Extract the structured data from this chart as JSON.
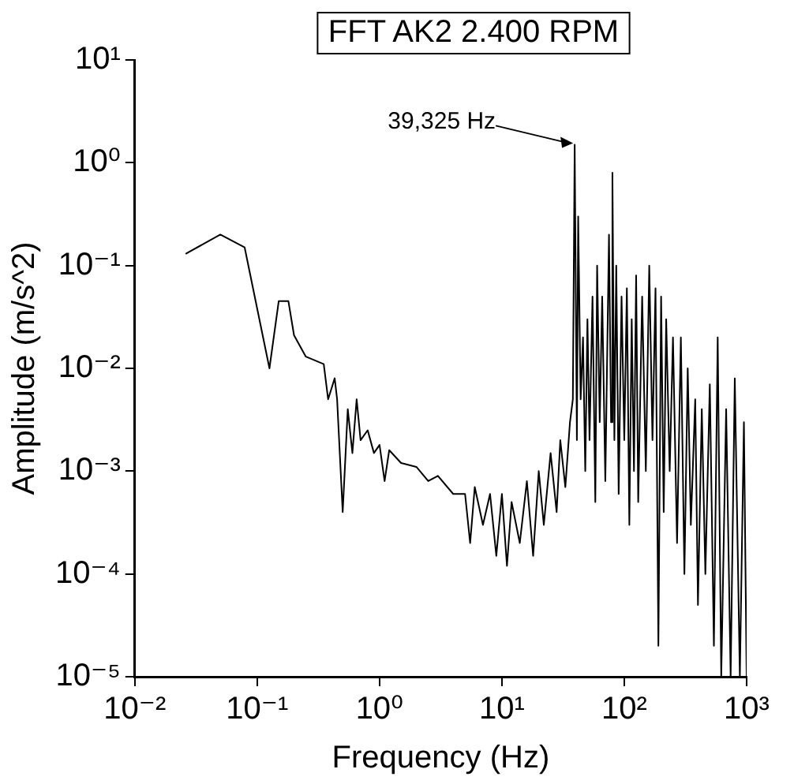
{
  "chart_data": {
    "type": "line",
    "title": "FFT AK2 2.400 RPM",
    "xlabel": "Frequency (Hz)",
    "ylabel": "Amplitude (m/s^2)",
    "log": "xy",
    "grid": false,
    "legend": false,
    "marker": "none",
    "line_style": "solid",
    "xlim": [
      0.01,
      1000
    ],
    "ylim": [
      1e-05,
      10
    ],
    "xticks": [
      {
        "value": 0.01,
        "label": "10⁻²"
      },
      {
        "value": 0.1,
        "label": "10⁻¹"
      },
      {
        "value": 1,
        "label": "10⁰"
      },
      {
        "value": 10,
        "label": "10¹"
      },
      {
        "value": 100,
        "label": "10²"
      },
      {
        "value": 1000,
        "label": "10³"
      }
    ],
    "yticks": [
      {
        "value": 1e-05,
        "label": "10⁻⁵"
      },
      {
        "value": 0.0001,
        "label": "10⁻⁴"
      },
      {
        "value": 0.001,
        "label": "10⁻³"
      },
      {
        "value": 0.01,
        "label": "10⁻²"
      },
      {
        "value": 0.1,
        "label": "10⁻¹"
      },
      {
        "value": 1,
        "label": "10⁰"
      },
      {
        "value": 10,
        "label": "10¹"
      }
    ],
    "annotations": [
      {
        "text": "39,325 Hz",
        "x": 39.325,
        "y": 1.5
      }
    ],
    "series": [
      {
        "color": "#000000",
        "x": [
          0.026,
          0.05,
          0.079,
          0.126,
          0.15,
          0.18,
          0.2,
          0.25,
          0.35,
          0.38,
          0.43,
          0.45,
          0.5,
          0.55,
          0.6,
          0.65,
          0.7,
          0.8,
          0.9,
          1,
          1.1,
          1.2,
          1.5,
          2,
          2.5,
          3,
          4,
          5,
          5.5,
          6,
          7,
          8,
          9,
          10,
          11,
          12,
          14,
          16,
          18,
          20,
          22,
          25,
          28,
          30,
          33,
          36,
          38,
          39.325,
          41,
          42,
          44,
          46,
          48,
          50,
          52,
          55,
          58,
          60,
          63,
          66,
          70,
          75,
          78,
          80,
          83,
          86,
          90,
          95,
          100,
          105,
          110,
          115,
          120,
          125,
          130,
          140,
          150,
          160,
          170,
          180,
          190,
          200,
          210,
          220,
          235,
          250,
          270,
          290,
          310,
          330,
          350,
          380,
          400,
          430,
          460,
          500,
          540,
          580,
          620,
          680,
          740,
          800,
          880,
          950,
          1000
        ],
        "values": [
          0.13,
          0.2,
          0.15,
          0.01,
          0.045,
          0.045,
          0.021,
          0.013,
          0.011,
          0.005,
          0.008,
          0.005,
          0.0004,
          0.004,
          0.0015,
          0.005,
          0.002,
          0.0025,
          0.0015,
          0.0018,
          0.0008,
          0.0016,
          0.0012,
          0.0011,
          0.0008,
          0.0009,
          0.0006,
          0.0006,
          0.0002,
          0.0007,
          0.0003,
          0.0006,
          0.00015,
          0.0006,
          0.00012,
          0.0005,
          0.0002,
          0.0008,
          0.00015,
          0.001,
          0.0003,
          0.0015,
          0.0004,
          0.002,
          0.0007,
          0.003,
          0.005,
          1.5,
          0.002,
          0.3,
          0.005,
          0.02,
          0.001,
          0.03,
          0.002,
          0.05,
          0.0005,
          0.1,
          0.003,
          0.05,
          0.0008,
          0.2,
          0.003,
          0.8,
          0.002,
          0.1,
          0.0006,
          0.05,
          0.002,
          0.06,
          0.0003,
          0.03,
          0.001,
          0.08,
          0.0005,
          0.05,
          0.001,
          0.1,
          0.002,
          0.06,
          2e-05,
          0.05,
          0.0004,
          0.03,
          0.001,
          0.02,
          0.0002,
          0.02,
          0.0001,
          0.01,
          0.0003,
          0.005,
          5e-05,
          0.004,
          0.0001,
          0.007,
          2e-05,
          0.02,
          1e-05,
          0.004,
          1e-05,
          0.008,
          1e-05,
          0.003,
          1e-05
        ]
      }
    ]
  }
}
